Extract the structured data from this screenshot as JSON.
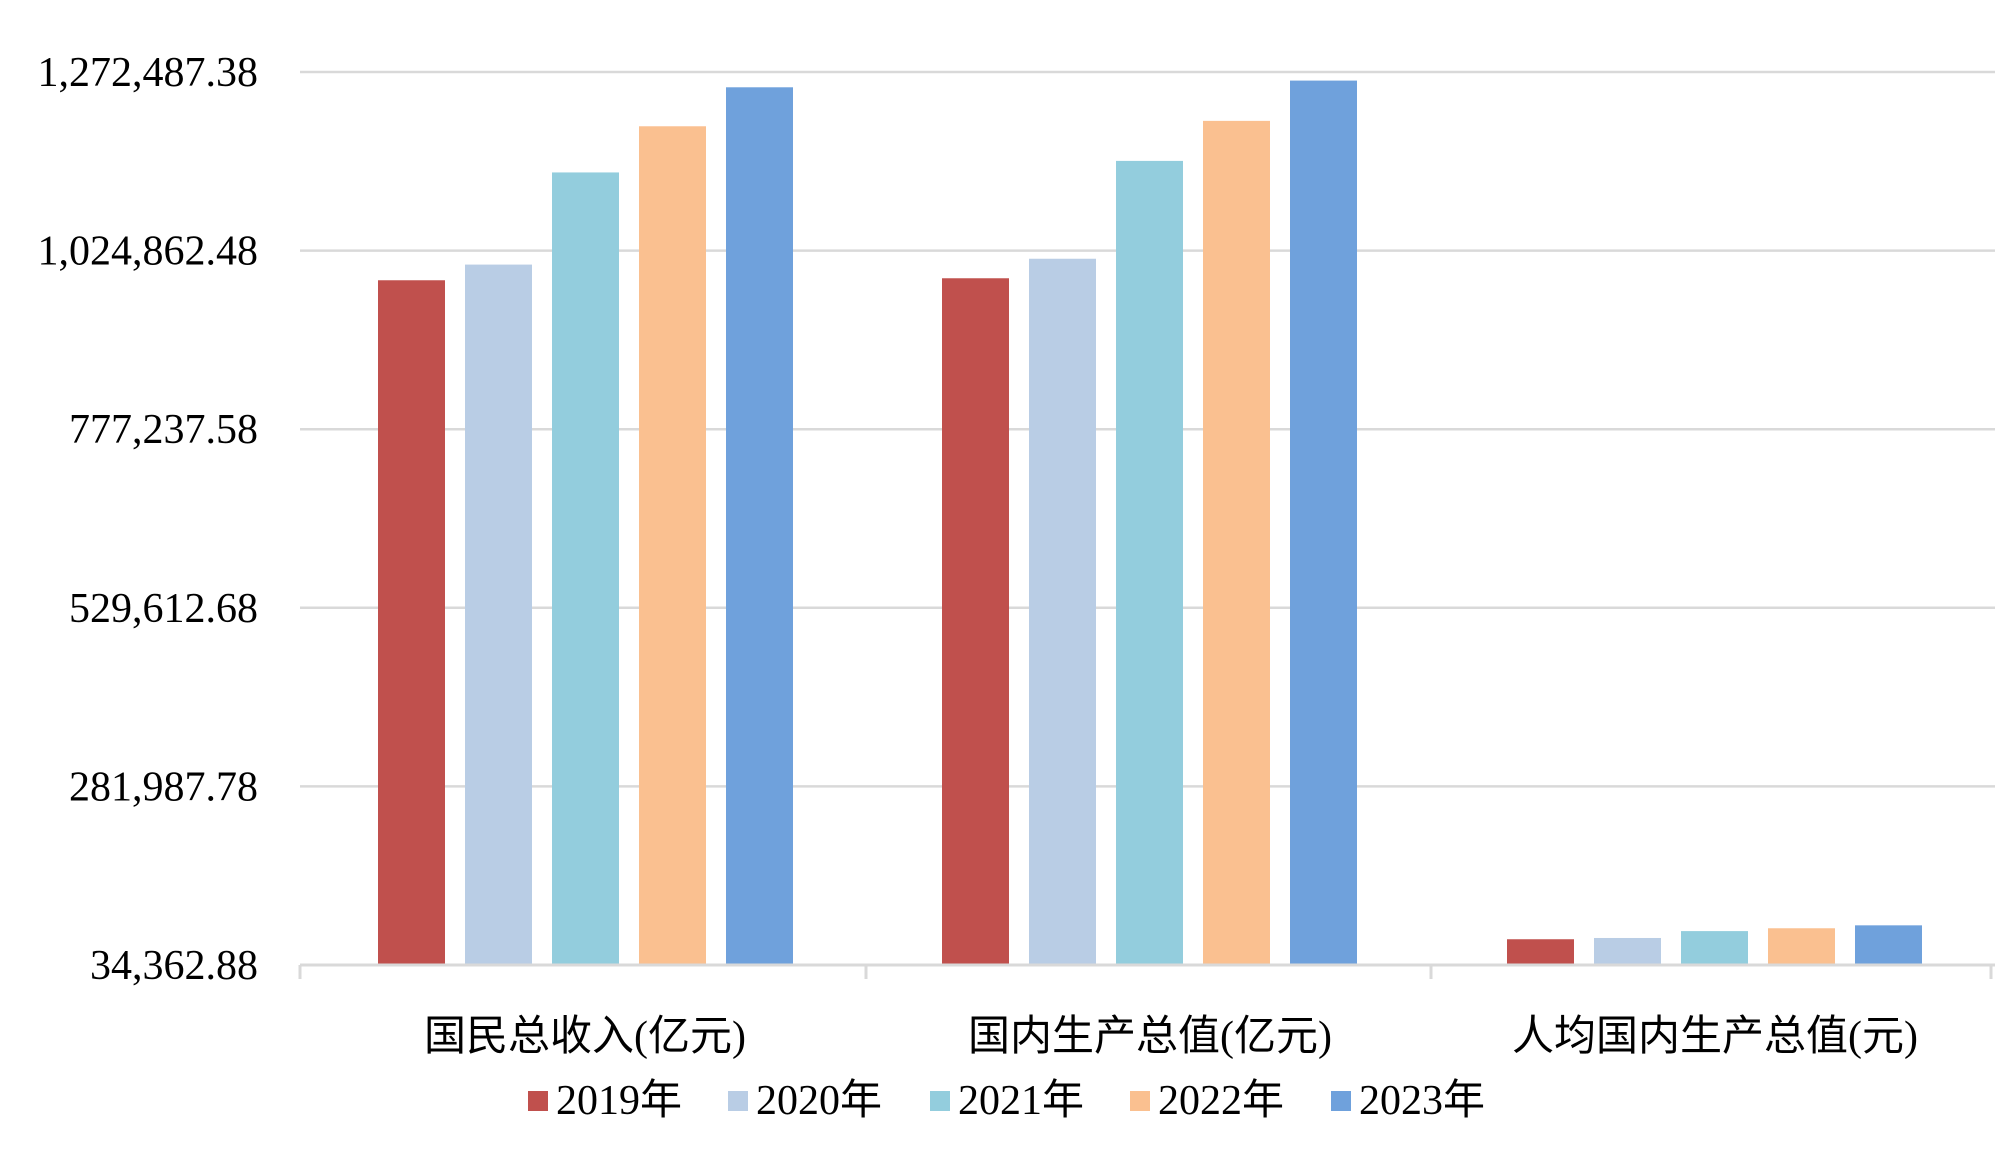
{
  "chart_data": {
    "type": "bar",
    "title": "",
    "xlabel": "",
    "ylabel": "",
    "categories": [
      "国民总收入(亿元)",
      "国内生产总值(亿元)",
      "人均国内生产总值(元)"
    ],
    "series": [
      {
        "name": "2019年",
        "color": "#C0504D",
        "values": [
          983751.2,
          986515.2,
          70078.0
        ]
      },
      {
        "name": "2020年",
        "color": "#B9CDE5",
        "values": [
          1005451.3,
          1013567.0,
          71828.0
        ]
      },
      {
        "name": "2021年",
        "color": "#93CDDD",
        "values": [
          1133239.8,
          1149237.0,
          81370.0
        ]
      },
      {
        "name": "2022年",
        "color": "#FAC090",
        "values": [
          1197250.4,
          1204724.0,
          85310.0
        ]
      },
      {
        "name": "2023年",
        "color": "#6FA1DC",
        "values": [
          1251297.2,
          1260582.1,
          89358.0
        ]
      }
    ],
    "yticks": [
      "34,362.88",
      "281,987.78",
      "529,612.68",
      "777,237.58",
      "1,024,862.48",
      "1,272,487.38"
    ],
    "ylim": [
      34362.88,
      1272487.38
    ],
    "grid": true,
    "legend_position": "bottom"
  }
}
